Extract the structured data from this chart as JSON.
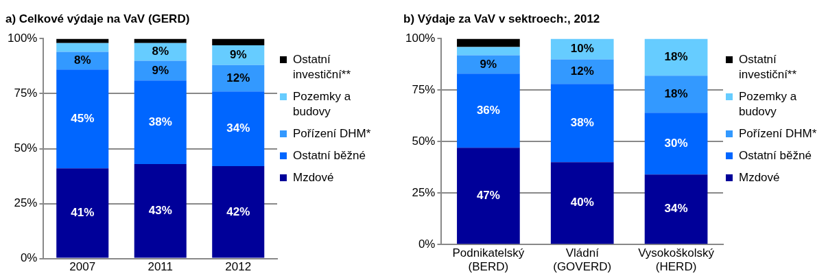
{
  "chart_data": [
    {
      "type": "bar",
      "title": "a) Celkové výdaje na VaV (GERD)",
      "categories": [
        "2007",
        "2011",
        "2012"
      ],
      "stacked": true,
      "ylim": [
        0,
        100
      ],
      "yticks": [
        {
          "value": 0,
          "label": "0%"
        },
        {
          "value": 25,
          "label": "25%"
        },
        {
          "value": 50,
          "label": "50%"
        },
        {
          "value": 75,
          "label": "75%"
        },
        {
          "value": 100,
          "label": "100%"
        }
      ],
      "grid": "y",
      "legend": "right",
      "series": [
        {
          "name": "Mzdové",
          "color": "#000099",
          "values": [
            41,
            43,
            42
          ],
          "value_labels": [
            "41%",
            "43%",
            "42%"
          ]
        },
        {
          "name": "Ostatní běžné",
          "color": "#0066ff",
          "values": [
            45,
            38,
            34
          ],
          "value_labels": [
            "45%",
            "38%",
            "34%"
          ]
        },
        {
          "name": "Pořízení DHM*",
          "color": "#3399ff",
          "values": [
            8,
            9,
            12
          ],
          "value_labels": [
            "8%",
            "9%",
            "12%"
          ]
        },
        {
          "name": "Pozemky a budovy",
          "color": "#66ccff",
          "values": [
            4,
            8,
            9
          ],
          "value_labels": [
            null,
            "8%",
            "9%"
          ]
        },
        {
          "name": "Ostatní investiční**",
          "color": "#000000",
          "values": [
            2,
            2,
            3
          ],
          "value_labels": [
            null,
            null,
            null
          ]
        }
      ]
    },
    {
      "type": "bar",
      "title": "b) Výdaje za VaV v sektroech:, 2012",
      "categories": [
        "Podnikatelský\n(BERD)",
        "Vládní\n(GOVERD)",
        "Vysokoškolský\n(HERD)"
      ],
      "stacked": true,
      "ylim": [
        0,
        100
      ],
      "yticks": [
        {
          "value": 0,
          "label": "0%"
        },
        {
          "value": 25,
          "label": "25%"
        },
        {
          "value": 50,
          "label": "50%"
        },
        {
          "value": 75,
          "label": "75%"
        },
        {
          "value": 100,
          "label": "100%"
        }
      ],
      "grid": "y",
      "legend": "right",
      "series": [
        {
          "name": "Mzdové",
          "color": "#000099",
          "values": [
            47,
            40,
            34
          ],
          "value_labels": [
            "47%",
            "40%",
            "34%"
          ]
        },
        {
          "name": "Ostatní běžné",
          "color": "#0066ff",
          "values": [
            36,
            38,
            30
          ],
          "value_labels": [
            "36%",
            "38%",
            "30%"
          ]
        },
        {
          "name": "Pořízení DHM*",
          "color": "#3399ff",
          "values": [
            9,
            12,
            18
          ],
          "value_labels": [
            "9%",
            "12%",
            "18%"
          ]
        },
        {
          "name": "Pozemky a budovy",
          "color": "#66ccff",
          "values": [
            4,
            10,
            18
          ],
          "value_labels": [
            null,
            "10%",
            "18%"
          ]
        },
        {
          "name": "Ostatní investiční**",
          "color": "#000000",
          "values": [
            4,
            0,
            0
          ],
          "value_labels": [
            null,
            null,
            null
          ]
        }
      ]
    }
  ]
}
